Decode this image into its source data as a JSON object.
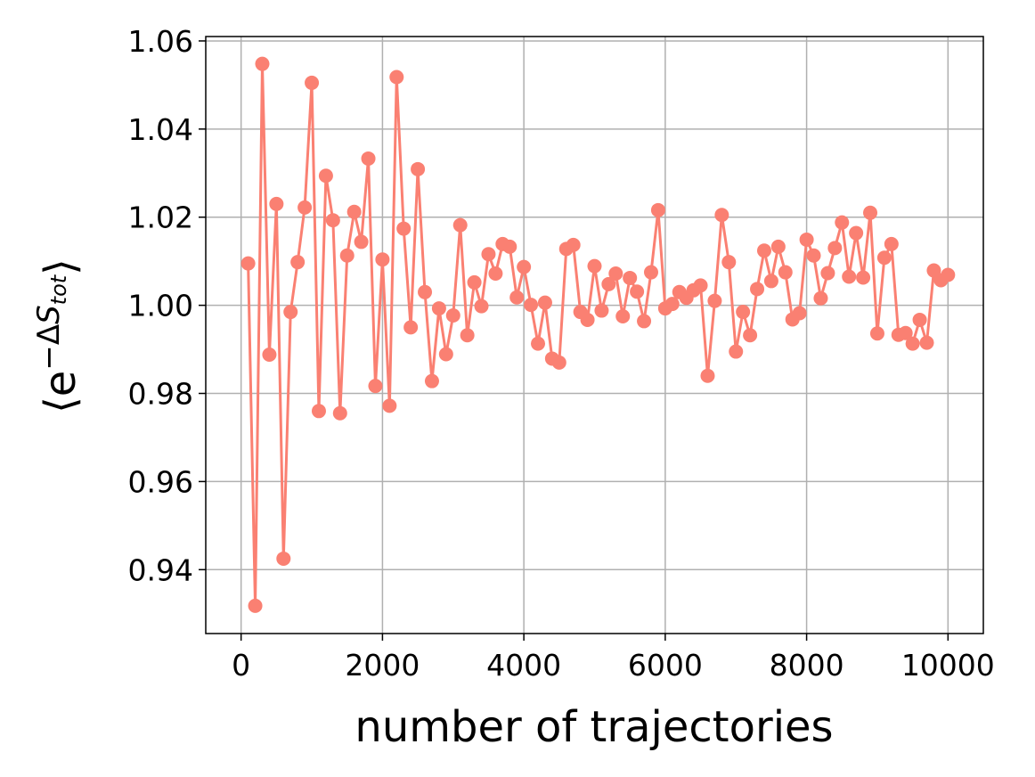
{
  "chart_data": {
    "type": "line",
    "title": "",
    "xlabel": "number of trajectories",
    "ylabel": "⟨e^{−ΔS_tot}⟩",
    "ylabel_parts": {
      "left": "⟨e",
      "sup_prefix": "−Δ",
      "sup_main": "S",
      "sup_sub": "tot",
      "right": "⟩"
    },
    "xlim": [
      -500,
      10500
    ],
    "ylim": [
      0.9255,
      1.061
    ],
    "xticks": [
      0,
      2000,
      4000,
      6000,
      8000,
      10000
    ],
    "xtick_labels": [
      "0",
      "2000",
      "4000",
      "6000",
      "8000",
      "10000"
    ],
    "yticks": [
      0.94,
      0.96,
      0.98,
      1.0,
      1.02,
      1.04,
      1.06
    ],
    "ytick_labels": [
      "0.94",
      "0.96",
      "0.98",
      "1.00",
      "1.02",
      "1.04",
      "1.06"
    ],
    "grid": true,
    "color": "#fa8072",
    "series": [
      {
        "marker": "circle",
        "x": [
          100,
          200,
          300,
          400,
          500,
          600,
          700,
          800,
          900,
          1000,
          1100,
          1200,
          1300,
          1400,
          1500,
          1600,
          1700,
          1800,
          1900,
          2000,
          2100,
          2200,
          2300,
          2400,
          2500,
          2600,
          2700,
          2800,
          2900,
          3000,
          3100,
          3200,
          3300,
          3400,
          3500,
          3600,
          3700,
          3800,
          3900,
          4000,
          4100,
          4200,
          4300,
          4400,
          4500,
          4600,
          4700,
          4800,
          4900,
          5000,
          5100,
          5200,
          5300,
          5400,
          5500,
          5600,
          5700,
          5800,
          5900,
          6000,
          6100,
          6200,
          6300,
          6400,
          6500,
          6600,
          6700,
          6800,
          6900,
          7000,
          7100,
          7200,
          7300,
          7400,
          7500,
          7600,
          7700,
          7800,
          7900,
          8000,
          8100,
          8200,
          8300,
          8400,
          8500,
          8600,
          8700,
          8800,
          8900,
          9000,
          9100,
          9200,
          9300,
          9400,
          9500,
          9600,
          9700,
          9800,
          9900,
          10000
        ],
        "y": [
          1.0095,
          0.9318,
          1.0548,
          0.9888,
          1.023,
          0.9425,
          0.9985,
          1.0098,
          1.0222,
          1.0505,
          0.976,
          1.0294,
          1.0193,
          0.9755,
          1.0113,
          1.0212,
          1.0144,
          1.0333,
          0.9817,
          1.0104,
          0.9772,
          1.0518,
          1.0174,
          0.995,
          1.0309,
          1.003,
          0.9828,
          0.9993,
          0.9889,
          0.9977,
          1.0182,
          0.9932,
          1.0052,
          0.9998,
          1.0116,
          1.0072,
          1.0139,
          1.0133,
          1.0018,
          1.0087,
          1.0001,
          0.9913,
          1.0006,
          0.9879,
          0.987,
          1.0128,
          1.0137,
          0.9985,
          0.9967,
          1.0089,
          0.9988,
          1.0048,
          1.0072,
          0.9975,
          1.0062,
          1.0031,
          0.9964,
          1.0075,
          1.0216,
          0.9993,
          1.0003,
          1.003,
          1.0017,
          1.0034,
          1.0045,
          0.984,
          1.001,
          1.0205,
          1.0098,
          0.9895,
          0.9985,
          0.9932,
          1.0037,
          1.0124,
          1.0055,
          1.0133,
          1.0075,
          0.9968,
          0.9982,
          1.0149,
          1.0113,
          1.0016,
          1.0073,
          1.013,
          1.0188,
          1.0065,
          1.0164,
          1.0063,
          1.021,
          0.9936,
          1.0108,
          1.0139,
          0.9933,
          0.9937,
          0.9913,
          0.9967,
          0.9915,
          1.0079,
          1.0057,
          1.0069
        ]
      }
    ]
  }
}
